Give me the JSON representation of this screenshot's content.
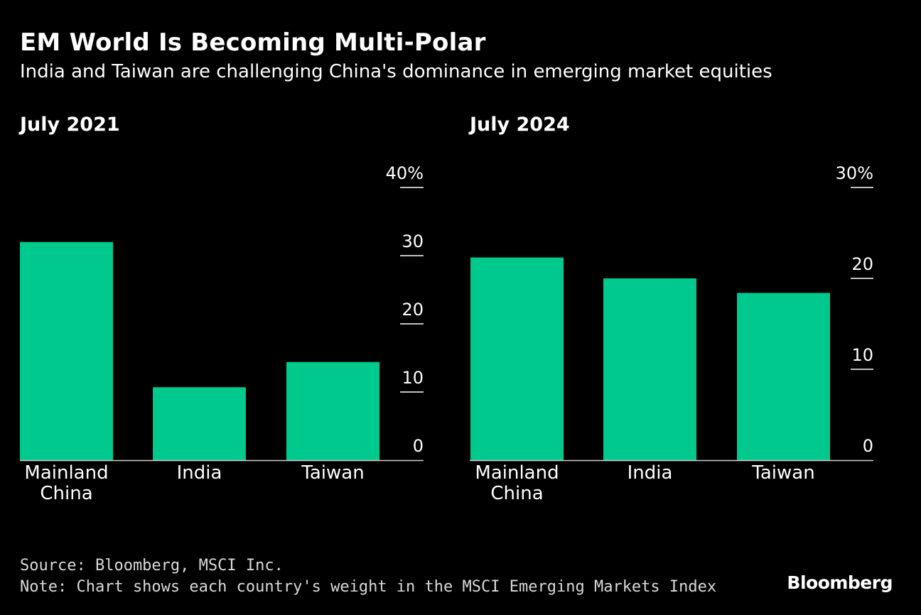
{
  "header": {
    "title": "EM World Is Becoming Multi-Polar",
    "subtitle": "India and Taiwan are challenging China's dominance in emerging market equities"
  },
  "colors": {
    "bar": "#00c98d",
    "background": "#000000",
    "text": "#ffffff"
  },
  "chart_data": [
    {
      "type": "bar",
      "title": "July 2021",
      "categories": [
        [
          "Mainland",
          "China"
        ],
        [
          "India"
        ],
        [
          "Taiwan"
        ]
      ],
      "values": [
        32,
        10.7,
        14.4
      ],
      "ylim": [
        0,
        40
      ],
      "yticks": [
        "0",
        "10",
        "20",
        "30",
        "40%"
      ],
      "tick_values": [
        0,
        10,
        20,
        30,
        40
      ]
    },
    {
      "type": "bar",
      "title": "July 2024",
      "categories": [
        [
          "Mainland",
          "China"
        ],
        [
          "India"
        ],
        [
          "Taiwan"
        ]
      ],
      "values": [
        22.3,
        20,
        18.4
      ],
      "ylim": [
        0,
        30
      ],
      "yticks": [
        "0",
        "10",
        "20",
        "30%"
      ],
      "tick_values": [
        0,
        10,
        20,
        30
      ]
    }
  ],
  "footer": {
    "source": "Source: Bloomberg, MSCI Inc.",
    "note": "Note: Chart shows each country's weight in the MSCI Emerging Markets Index",
    "logo": "Bloomberg"
  }
}
